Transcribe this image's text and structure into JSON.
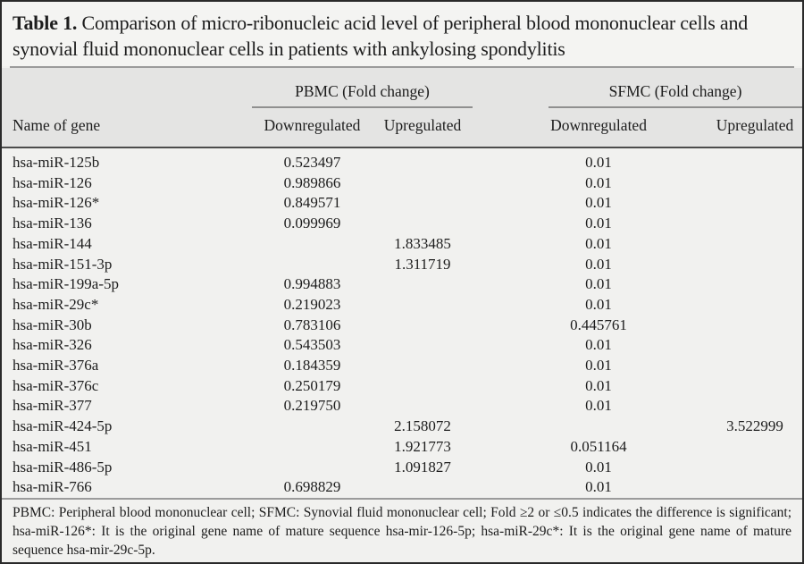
{
  "title": {
    "label": "Table 1.",
    "text": "Comparison of micro-ribonucleic acid level of peripheral blood mononuclear cells and synovial fluid mononuclear cells in patients with ankylosing spondylitis"
  },
  "table": {
    "gene_column_header": "Name of gene",
    "pbmc_group_label": "PBMC (Fold change)",
    "sfmc_group_label": "SFMC (Fold change)",
    "pbmc_down_label": "Downregulated",
    "pbmc_up_label": "Upregulated",
    "sfmc_down_label": "Downregulated",
    "sfmc_up_label": "Upregulated",
    "rows": [
      {
        "gene": "hsa-miR-125b",
        "pbmc_down": "0.523497",
        "pbmc_up": "",
        "sfmc_down": "0.01",
        "sfmc_up": ""
      },
      {
        "gene": "hsa-miR-126",
        "pbmc_down": "0.989866",
        "pbmc_up": "",
        "sfmc_down": "0.01",
        "sfmc_up": ""
      },
      {
        "gene": "hsa-miR-126*",
        "pbmc_down": "0.849571",
        "pbmc_up": "",
        "sfmc_down": "0.01",
        "sfmc_up": ""
      },
      {
        "gene": "hsa-miR-136",
        "pbmc_down": "0.099969",
        "pbmc_up": "",
        "sfmc_down": "0.01",
        "sfmc_up": ""
      },
      {
        "gene": "hsa-miR-144",
        "pbmc_down": "",
        "pbmc_up": "1.833485",
        "sfmc_down": "0.01",
        "sfmc_up": ""
      },
      {
        "gene": "hsa-miR-151-3p",
        "pbmc_down": "",
        "pbmc_up": "1.311719",
        "sfmc_down": "0.01",
        "sfmc_up": ""
      },
      {
        "gene": "hsa-miR-199a-5p",
        "pbmc_down": "0.994883",
        "pbmc_up": "",
        "sfmc_down": "0.01",
        "sfmc_up": ""
      },
      {
        "gene": "hsa-miR-29c*",
        "pbmc_down": "0.219023",
        "pbmc_up": "",
        "sfmc_down": "0.01",
        "sfmc_up": ""
      },
      {
        "gene": "hsa-miR-30b",
        "pbmc_down": "0.783106",
        "pbmc_up": "",
        "sfmc_down": "0.445761",
        "sfmc_up": ""
      },
      {
        "gene": "hsa-miR-326",
        "pbmc_down": "0.543503",
        "pbmc_up": "",
        "sfmc_down": "0.01",
        "sfmc_up": ""
      },
      {
        "gene": "hsa-miR-376a",
        "pbmc_down": "0.184359",
        "pbmc_up": "",
        "sfmc_down": "0.01",
        "sfmc_up": ""
      },
      {
        "gene": "hsa-miR-376c",
        "pbmc_down": "0.250179",
        "pbmc_up": "",
        "sfmc_down": "0.01",
        "sfmc_up": ""
      },
      {
        "gene": "hsa-miR-377",
        "pbmc_down": "0.219750",
        "pbmc_up": "",
        "sfmc_down": "0.01",
        "sfmc_up": ""
      },
      {
        "gene": "hsa-miR-424-5p",
        "pbmc_down": "",
        "pbmc_up": "2.158072",
        "sfmc_down": "",
        "sfmc_up": "3.522999"
      },
      {
        "gene": "hsa-miR-451",
        "pbmc_down": "",
        "pbmc_up": "1.921773",
        "sfmc_down": "0.051164",
        "sfmc_up": ""
      },
      {
        "gene": "hsa-miR-486-5p",
        "pbmc_down": "",
        "pbmc_up": "1.091827",
        "sfmc_down": "0.01",
        "sfmc_up": ""
      },
      {
        "gene": "hsa-miR-766",
        "pbmc_down": "0.698829",
        "pbmc_up": "",
        "sfmc_down": "0.01",
        "sfmc_up": ""
      }
    ]
  },
  "footnote": "PBMC: Peripheral blood mononuclear cell; SFMC: Synovial fluid mononuclear cell; Fold ≥2 or ≤0.5 indicates the difference is significant; hsa-miR-126*: It is the original gene name of mature sequence hsa-mir-126-5p; hsa-miR-29c*: It is the original gene name of mature sequence hsa-mir-29c-5p.",
  "colors": {
    "page_bg": "#f1f1ef",
    "header_band": "#e4e4e3",
    "text": "#1d1d1d",
    "rule_gray": "#9b9b9b",
    "rule_dark": "#4c4c4c",
    "outer_border": "#2a2a2a"
  }
}
